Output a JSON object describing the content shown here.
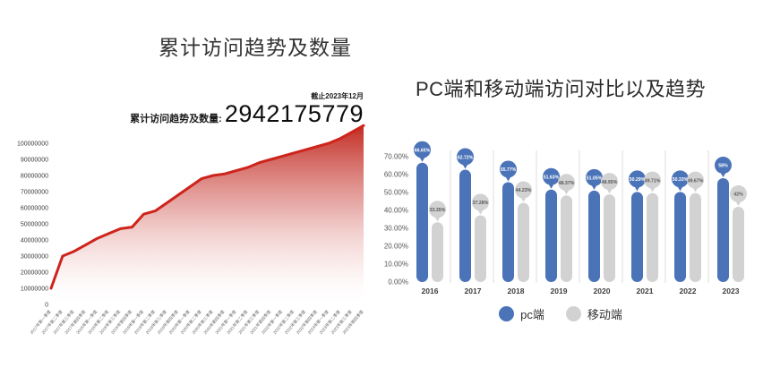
{
  "page": {
    "background": "#ffffff"
  },
  "chart_data": [
    {
      "type": "area",
      "title": "累计访问趋势及数量",
      "annotation": {
        "asof": "截止2023年12月",
        "label": "累计访问趋势及数量:",
        "value": "2942175779"
      },
      "x": [
        "2017年第一季度",
        "2017年第二季度",
        "2017年第三季度",
        "2017年第四季度",
        "2018年第一季度",
        "2018年第二季度",
        "2018年第三季度",
        "2018年第四季度",
        "2019年第一季度",
        "2019年第二季度",
        "2019年第三季度",
        "2019年第四季度",
        "2020年第一季度",
        "2020年第二季度",
        "2020年第三季度",
        "2020年第四季度",
        "2021年第一季度",
        "2021年第二季度",
        "2021年第三季度",
        "2021年第四季度",
        "2022年第一季度",
        "2022年第二季度",
        "2022年第三季度",
        "2022年第四季度",
        "2023年第一季度",
        "2023年第二季度",
        "2023年第三季度",
        "2023年第四季度"
      ],
      "values": [
        10000000,
        30000000,
        33000000,
        37000000,
        41000000,
        44000000,
        47000000,
        48000000,
        56000000,
        58000000,
        63000000,
        68000000,
        73000000,
        78000000,
        80000000,
        81000000,
        83000000,
        85000000,
        88000000,
        90000000,
        92000000,
        94000000,
        96000000,
        98000000,
        100000000,
        103000000,
        107000000,
        111000000
      ],
      "xlabel": "",
      "ylabel": "",
      "ylim": [
        0,
        100000000
      ],
      "yticks": [
        "0",
        "10000000",
        "20000000",
        "30000000",
        "40000000",
        "50000000",
        "60000000",
        "70000000",
        "80000000",
        "90000000",
        "100000000"
      ],
      "grid": false,
      "line_color": "#cd241b",
      "fill_gradient_top": "#c1261d",
      "fill_gradient_bottom": "#ffffff"
    },
    {
      "type": "bar",
      "title": "PC端和移动端访问对比以及趋势",
      "categories": [
        "2016",
        "2017",
        "2018",
        "2019",
        "2020",
        "2021",
        "2022",
        "2023"
      ],
      "series": [
        {
          "name": "pc端",
          "color": "#4a73b8",
          "values": [
            66.65,
            62.72,
            55.77,
            51.63,
            51.05,
            50.29,
            50.33,
            58
          ],
          "labels": [
            "66.65%",
            "62.72%",
            "55.77%",
            "51.63%",
            "51.05%",
            "50.29%",
            "50.33%",
            "58%"
          ],
          "label_text_color": "#ffffff"
        },
        {
          "name": "移动端",
          "color": "#d2d2d2",
          "values": [
            33.35,
            37.28,
            44.23,
            48.37,
            48.95,
            49.71,
            49.67,
            42
          ],
          "labels": [
            "33.35%",
            "37.28%",
            "44.23%",
            "48.37%",
            "48.95%",
            "49.71%",
            "49.67%",
            "42%"
          ],
          "label_text_color": "#595959"
        }
      ],
      "ylim": [
        0,
        70
      ],
      "yticks": [
        "0.00%",
        "10.00%",
        "20.00%",
        "30.00%",
        "40.00%",
        "50.00%",
        "60.00%",
        "70.00%"
      ],
      "grid": false,
      "legend_position": "bottom",
      "separator_color": "#dcdcdc"
    }
  ]
}
